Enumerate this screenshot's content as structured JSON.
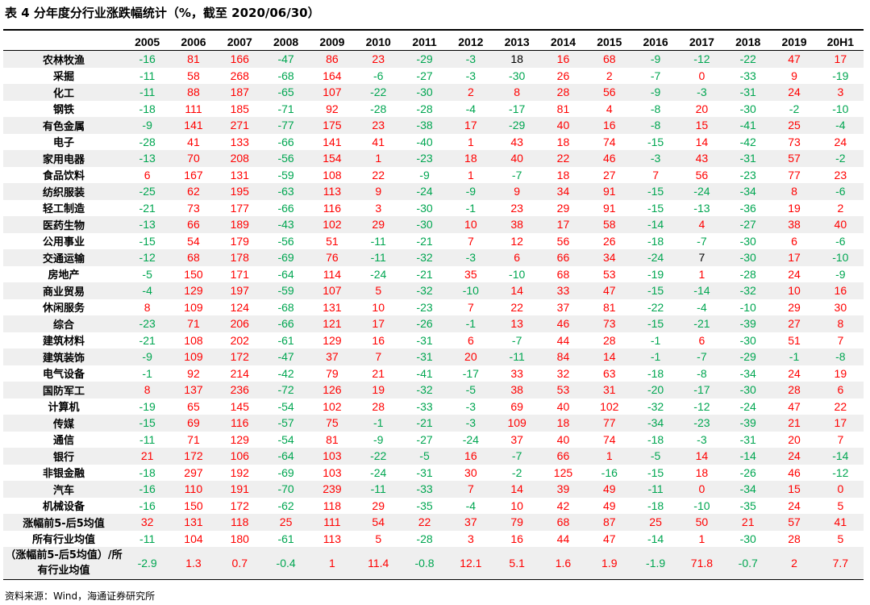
{
  "title": "表 4  分年度分行业涨跌幅统计（%，截至 2020/06/30）",
  "source": "资料来源：Wind，海通证券研究所",
  "colors": {
    "positive": "#ff0000",
    "negative": "#00a651",
    "neutral": "#000000",
    "stripe": "#efefef"
  },
  "columns": [
    "2005",
    "2006",
    "2007",
    "2008",
    "2009",
    "2010",
    "2011",
    "2012",
    "2013",
    "2014",
    "2015",
    "2016",
    "2017",
    "2018",
    "2019",
    "20H1"
  ],
  "rows": [
    {
      "name": "农林牧渔",
      "values": [
        "-16",
        "81",
        "166",
        "-47",
        "86",
        "23",
        "-29",
        "-3",
        "18",
        "16",
        "68",
        "-9",
        "-12",
        "-22",
        "47",
        "17"
      ]
    },
    {
      "name": "采掘",
      "values": [
        "-11",
        "58",
        "268",
        "-68",
        "164",
        "-6",
        "-27",
        "-3",
        "-30",
        "26",
        "2",
        "-7",
        "0",
        "-33",
        "9",
        "-19"
      ]
    },
    {
      "name": "化工",
      "values": [
        "-11",
        "88",
        "187",
        "-65",
        "107",
        "-22",
        "-30",
        "2",
        "8",
        "28",
        "56",
        "-9",
        "-3",
        "-31",
        "24",
        "3"
      ]
    },
    {
      "name": "钢铁",
      "values": [
        "-18",
        "111",
        "185",
        "-71",
        "92",
        "-28",
        "-28",
        "-4",
        "-17",
        "81",
        "4",
        "-8",
        "20",
        "-30",
        "-2",
        "-10"
      ]
    },
    {
      "name": "有色金属",
      "values": [
        "-9",
        "141",
        "271",
        "-77",
        "175",
        "23",
        "-38",
        "17",
        "-29",
        "40",
        "16",
        "-8",
        "15",
        "-41",
        "25",
        "-4"
      ]
    },
    {
      "name": "电子",
      "values": [
        "-28",
        "41",
        "133",
        "-66",
        "141",
        "41",
        "-40",
        "1",
        "43",
        "18",
        "74",
        "-15",
        "14",
        "-42",
        "73",
        "24"
      ]
    },
    {
      "name": "家用电器",
      "values": [
        "-13",
        "70",
        "208",
        "-56",
        "154",
        "1",
        "-23",
        "18",
        "40",
        "22",
        "46",
        "-3",
        "43",
        "-31",
        "57",
        "-2"
      ]
    },
    {
      "name": "食品饮料",
      "values": [
        "6",
        "167",
        "131",
        "-59",
        "108",
        "22",
        "-9",
        "1",
        "-7",
        "18",
        "27",
        "7",
        "56",
        "-23",
        "77",
        "23"
      ]
    },
    {
      "name": "纺织服装",
      "values": [
        "-25",
        "62",
        "195",
        "-63",
        "113",
        "9",
        "-24",
        "-9",
        "9",
        "34",
        "91",
        "-15",
        "-24",
        "-34",
        "8",
        "-6"
      ]
    },
    {
      "name": "轻工制造",
      "values": [
        "-21",
        "73",
        "177",
        "-66",
        "116",
        "3",
        "-30",
        "-1",
        "23",
        "29",
        "91",
        "-15",
        "-13",
        "-36",
        "19",
        "2"
      ]
    },
    {
      "name": "医药生物",
      "values": [
        "-13",
        "66",
        "189",
        "-43",
        "102",
        "29",
        "-30",
        "10",
        "38",
        "17",
        "58",
        "-14",
        "4",
        "-27",
        "38",
        "40"
      ]
    },
    {
      "name": "公用事业",
      "values": [
        "-15",
        "54",
        "179",
        "-56",
        "51",
        "-11",
        "-21",
        "7",
        "12",
        "56",
        "26",
        "-18",
        "-7",
        "-30",
        "6",
        "-6"
      ]
    },
    {
      "name": "交通运输",
      "values": [
        "-12",
        "68",
        "178",
        "-69",
        "76",
        "-11",
        "-32",
        "-3",
        "6",
        "66",
        "34",
        "-24",
        "7",
        "-30",
        "17",
        "-10"
      ]
    },
    {
      "name": "房地产",
      "values": [
        "-5",
        "150",
        "171",
        "-64",
        "114",
        "-24",
        "-21",
        "35",
        "-10",
        "68",
        "53",
        "-19",
        "1",
        "-28",
        "24",
        "-9"
      ]
    },
    {
      "name": "商业贸易",
      "values": [
        "-4",
        "129",
        "197",
        "-59",
        "107",
        "5",
        "-32",
        "-10",
        "14",
        "33",
        "47",
        "-15",
        "-14",
        "-32",
        "10",
        "16"
      ]
    },
    {
      "name": "休闲服务",
      "values": [
        "8",
        "109",
        "124",
        "-68",
        "131",
        "10",
        "-23",
        "7",
        "22",
        "37",
        "81",
        "-22",
        "-4",
        "-10",
        "29",
        "30"
      ]
    },
    {
      "name": "综合",
      "values": [
        "-23",
        "71",
        "206",
        "-66",
        "121",
        "17",
        "-26",
        "-1",
        "13",
        "46",
        "73",
        "-15",
        "-21",
        "-39",
        "27",
        "8"
      ]
    },
    {
      "name": "建筑材料",
      "values": [
        "-21",
        "108",
        "202",
        "-61",
        "129",
        "16",
        "-31",
        "6",
        "-7",
        "44",
        "28",
        "-1",
        "6",
        "-30",
        "51",
        "7"
      ]
    },
    {
      "name": "建筑装饰",
      "values": [
        "-9",
        "109",
        "172",
        "-47",
        "37",
        "7",
        "-31",
        "20",
        "-11",
        "84",
        "14",
        "-1",
        "-7",
        "-29",
        "-1",
        "-8"
      ]
    },
    {
      "name": "电气设备",
      "values": [
        "-1",
        "92",
        "214",
        "-42",
        "79",
        "21",
        "-41",
        "-17",
        "33",
        "32",
        "63",
        "-18",
        "-8",
        "-34",
        "24",
        "19"
      ]
    },
    {
      "name": "国防军工",
      "values": [
        "8",
        "137",
        "236",
        "-72",
        "126",
        "19",
        "-32",
        "-5",
        "38",
        "53",
        "31",
        "-20",
        "-17",
        "-30",
        "28",
        "6"
      ]
    },
    {
      "name": "计算机",
      "values": [
        "-19",
        "65",
        "145",
        "-54",
        "102",
        "28",
        "-33",
        "-3",
        "69",
        "40",
        "102",
        "-32",
        "-12",
        "-24",
        "47",
        "22"
      ]
    },
    {
      "name": "传媒",
      "values": [
        "-15",
        "69",
        "116",
        "-57",
        "75",
        "-1",
        "-21",
        "-3",
        "109",
        "18",
        "77",
        "-34",
        "-23",
        "-39",
        "21",
        "17"
      ]
    },
    {
      "name": "通信",
      "values": [
        "-11",
        "71",
        "129",
        "-54",
        "81",
        "-9",
        "-27",
        "-24",
        "37",
        "40",
        "74",
        "-18",
        "-3",
        "-31",
        "20",
        "7"
      ]
    },
    {
      "name": "银行",
      "values": [
        "21",
        "172",
        "106",
        "-64",
        "103",
        "-22",
        "-5",
        "16",
        "-7",
        "66",
        "1",
        "-5",
        "14",
        "-14",
        "24",
        "-14"
      ]
    },
    {
      "name": "非银金融",
      "values": [
        "-18",
        "297",
        "192",
        "-69",
        "103",
        "-24",
        "-31",
        "30",
        "-2",
        "125",
        "-16",
        "-15",
        "18",
        "-26",
        "46",
        "-12"
      ]
    },
    {
      "name": "汽车",
      "values": [
        "-16",
        "110",
        "191",
        "-70",
        "239",
        "-11",
        "-33",
        "7",
        "14",
        "39",
        "49",
        "-11",
        "0",
        "-34",
        "15",
        "0"
      ]
    },
    {
      "name": "机械设备",
      "values": [
        "-16",
        "150",
        "172",
        "-62",
        "118",
        "29",
        "-35",
        "-4",
        "10",
        "42",
        "49",
        "-18",
        "-10",
        "-35",
        "24",
        "5"
      ]
    },
    {
      "name": "涨幅前5-后5均值",
      "values": [
        "32",
        "131",
        "118",
        "25",
        "111",
        "54",
        "22",
        "37",
        "79",
        "68",
        "87",
        "25",
        "50",
        "21",
        "57",
        "41"
      ]
    },
    {
      "name": "所有行业均值",
      "values": [
        "-11",
        "104",
        "180",
        "-61",
        "113",
        "5",
        "-28",
        "3",
        "16",
        "44",
        "47",
        "-14",
        "1",
        "-30",
        "28",
        "5"
      ]
    },
    {
      "name": "（涨幅前5-后5均值）/所有行业均值",
      "values": [
        "-2.9",
        "1.3",
        "0.7",
        "-0.4",
        "1",
        "11.4",
        "-0.8",
        "12.1",
        "5.1",
        "1.6",
        "1.9",
        "-1.9",
        "71.8",
        "-0.7",
        "2",
        "7.7"
      ]
    }
  ]
}
